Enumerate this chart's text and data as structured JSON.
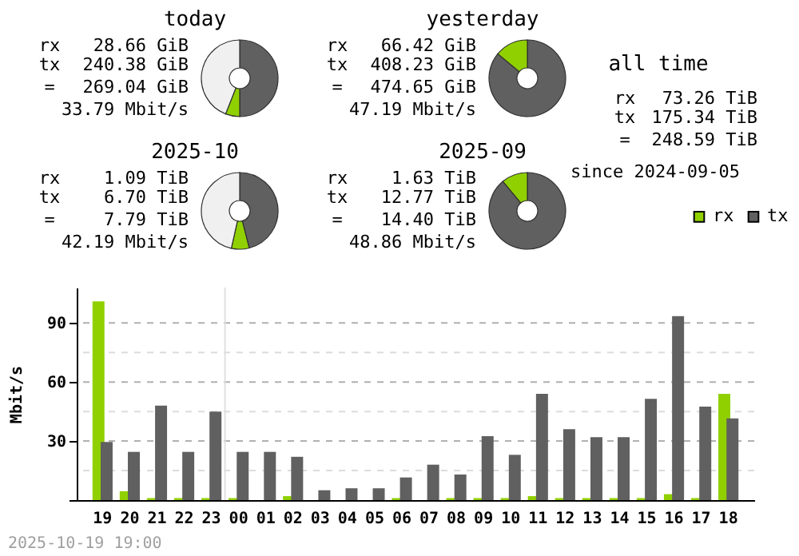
{
  "chart_data": [
    {
      "type": "donut",
      "title": "today",
      "values": [
        50,
        6,
        44
      ],
      "colors": [
        "#606060",
        "#90d000",
        "#f0f0f0"
      ],
      "annotations": [
        "rx",
        "28.66 GiB",
        "tx",
        "240.38 GiB",
        "=",
        "269.04 GiB",
        "33.79 Mbit/s"
      ]
    },
    {
      "type": "donut",
      "title": "yesterday",
      "values": [
        86,
        14
      ],
      "colors": [
        "#606060",
        "#90d000"
      ],
      "annotations": [
        "rx",
        "66.42 GiB",
        "tx",
        "408.23 GiB",
        "=",
        "474.65 GiB",
        "47.19 Mbit/s"
      ]
    },
    {
      "type": "other",
      "title": "all time",
      "annotations": [
        "rx",
        "73.26 TiB",
        "tx",
        "175.34 TiB",
        "=",
        "248.59 TiB",
        "since 2024-09-05"
      ]
    },
    {
      "type": "donut",
      "title": "2025-10",
      "values": [
        46,
        7.5,
        46.5
      ],
      "colors": [
        "#606060",
        "#90d000",
        "#f0f0f0"
      ],
      "annotations": [
        "rx",
        "1.09 TiB",
        "tx",
        "6.70 TiB",
        "=",
        "7.79 TiB",
        "42.19 Mbit/s"
      ]
    },
    {
      "type": "donut",
      "title": "2025-09",
      "values": [
        89,
        11
      ],
      "colors": [
        "#606060",
        "#90d000"
      ],
      "annotations": [
        "rx",
        "1.63 TiB",
        "tx",
        "12.77 TiB",
        "=",
        "14.40 TiB",
        "48.86 Mbit/s"
      ]
    },
    {
      "type": "bar",
      "ylabel": "Mbit/s",
      "categories": [
        "19",
        "20",
        "21",
        "22",
        "23",
        "00",
        "01",
        "02",
        "03",
        "04",
        "05",
        "06",
        "07",
        "08",
        "09",
        "10",
        "11",
        "12",
        "13",
        "14",
        "15",
        "16",
        "17",
        "18"
      ],
      "series": [
        {
          "name": "rx",
          "color": "#90d000",
          "values": [
            101,
            4.5,
            1,
            1,
            1,
            1,
            0,
            2,
            0,
            0,
            0,
            1,
            0,
            1,
            1,
            1,
            2,
            1,
            1,
            1,
            1,
            3,
            1,
            54
          ]
        },
        {
          "name": "tx",
          "color": "#606060",
          "values": [
            29.5,
            24.5,
            48,
            24.5,
            45,
            24.5,
            24.5,
            22,
            5,
            6,
            6,
            11.5,
            18,
            13,
            32.5,
            23,
            54,
            36,
            32,
            32,
            51.5,
            93.5,
            47.5,
            41.5
          ]
        }
      ],
      "ylim": [
        0,
        108
      ],
      "yticks": [
        {
          "value": 0,
          "label": null
        },
        {
          "value": 15,
          "label": null
        },
        30,
        {
          "value": 45,
          "label": null
        },
        60,
        {
          "value": 75,
          "label": null
        },
        90
      ],
      "grid": "y",
      "legend": "top right",
      "ref_lines": [
        {
          "axis": "x",
          "value": "00",
          "color": "#e0e0e0"
        }
      ],
      "annotations": [
        "2025-10-19 19:00"
      ]
    }
  ]
}
